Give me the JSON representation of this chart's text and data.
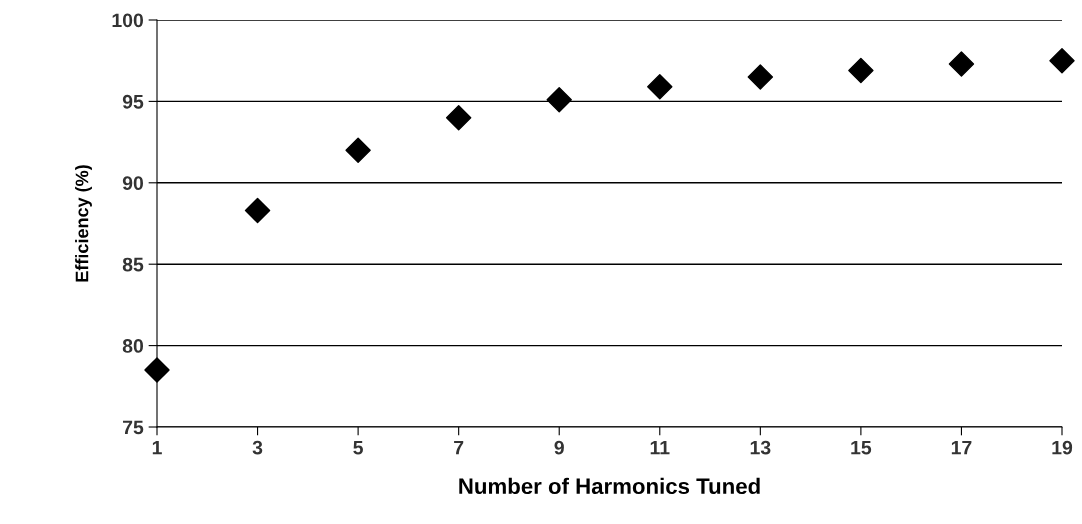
{
  "chart_data": {
    "type": "scatter",
    "xlabel": "Number of Harmonics Tuned",
    "ylabel": "Efficiency (%)",
    "x": [
      1,
      3,
      5,
      7,
      9,
      11,
      13,
      15,
      17,
      19
    ],
    "series": [
      {
        "color": "#000000",
        "values": [
          78.5,
          88.3,
          92.0,
          94.0,
          95.1,
          95.9,
          96.5,
          96.9,
          97.3,
          97.5
        ]
      }
    ],
    "xlim": [
      1,
      19
    ],
    "xticks": [
      1,
      3,
      5,
      7,
      9,
      11,
      13,
      15,
      17,
      19
    ],
    "ylim": [
      75,
      100
    ],
    "yticks": [
      75,
      80,
      85,
      90,
      95,
      100
    ],
    "grid": "y",
    "marker": "diamond",
    "legend": false
  }
}
